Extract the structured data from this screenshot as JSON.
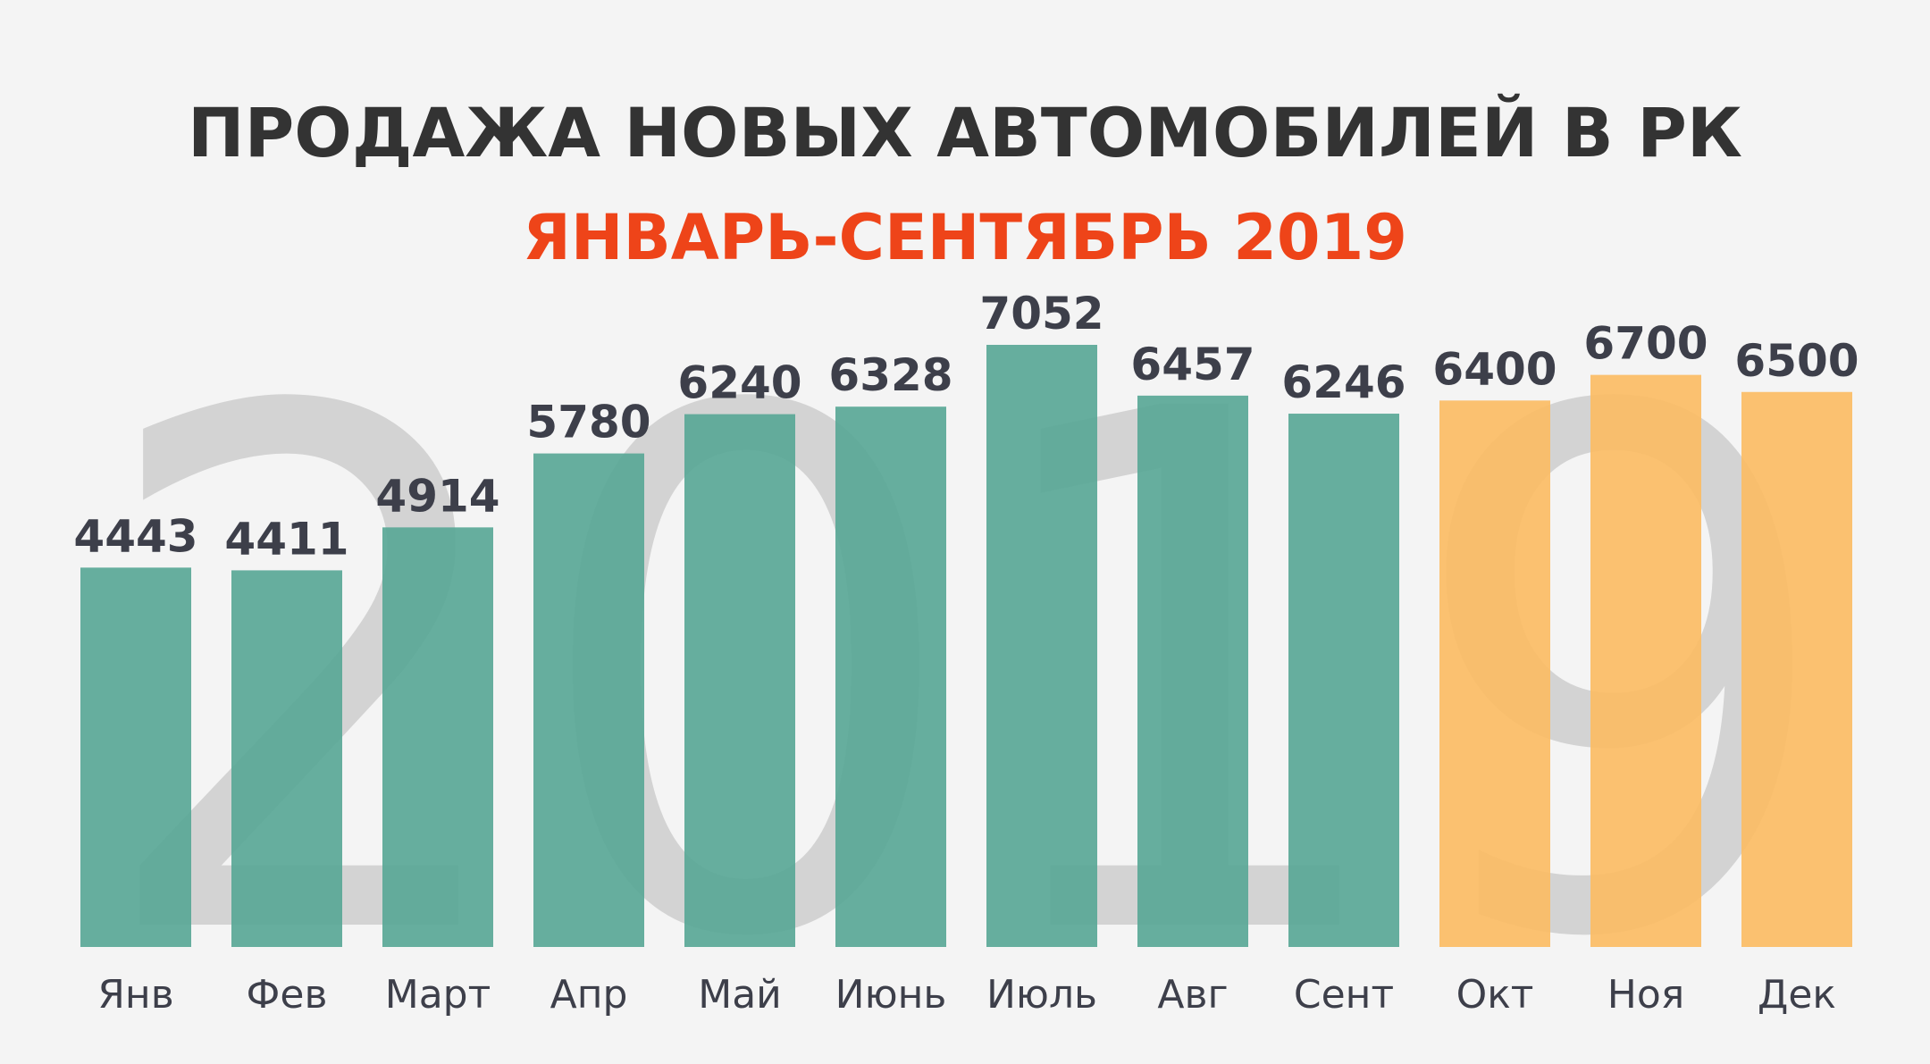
{
  "chart_data": {
    "type": "bar",
    "title": "ПРОДАЖА НОВЫХ АВТОМОБИЛЕЙ В РК",
    "subtitle": "ЯНВАРЬ-СЕНТЯБРЬ 2019",
    "background_text": "2019",
    "categories": [
      "Янв",
      "Фев",
      "Март",
      "Апр",
      "Май",
      "Июнь",
      "Июль",
      "Авг",
      "Сент",
      "Окт",
      "Ноя",
      "Дек"
    ],
    "values": [
      4443,
      4411,
      4914,
      5780,
      6240,
      6328,
      7052,
      6457,
      6246,
      6400,
      6700,
      6500
    ],
    "bar_colors": [
      "#5aa897",
      "#5aa897",
      "#5aa897",
      "#5aa897",
      "#5aa897",
      "#5aa897",
      "#5aa897",
      "#5aa897",
      "#5aa897",
      "#fbbc65",
      "#fbbc65",
      "#fbbc65"
    ],
    "colors": {
      "actual": "#5aa897",
      "forecast": "#fbbc65",
      "title": "#333333",
      "subtitle": "#ee4419",
      "labels": "#3d3f4a",
      "watermark": "#d3d3d3"
    },
    "xlabel": "",
    "ylabel": "",
    "ylim": [
      0,
      7052
    ],
    "grid": false,
    "legend": "none"
  }
}
